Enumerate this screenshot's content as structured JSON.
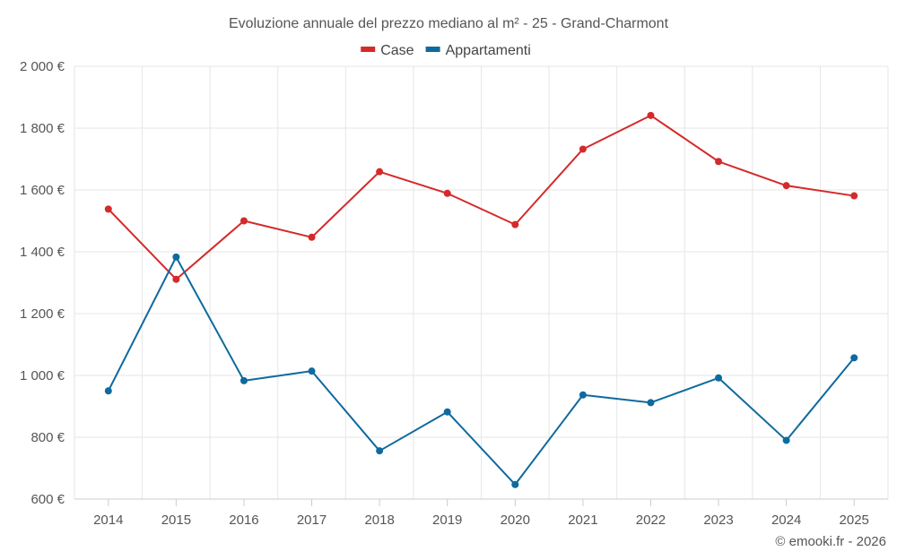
{
  "chart_data": {
    "type": "line",
    "title": "Evoluzione annuale del prezzo mediano al m² - 25 - Grand-Charmont",
    "categories": [
      "2014",
      "2015",
      "2016",
      "2017",
      "2018",
      "2019",
      "2020",
      "2021",
      "2022",
      "2023",
      "2024",
      "2025"
    ],
    "series": [
      {
        "name": "Case",
        "color": "#d42a2a",
        "values": [
          1538,
          1311,
          1500,
          1447,
          1659,
          1589,
          1488,
          1732,
          1841,
          1692,
          1614,
          1581
        ]
      },
      {
        "name": "Appartamenti",
        "color": "#0f6a9e",
        "values": [
          950,
          1383,
          983,
          1014,
          756,
          882,
          647,
          937,
          912,
          992,
          790,
          1057
        ]
      }
    ],
    "ylim": [
      600,
      2000
    ],
    "yticks": [
      600,
      800,
      1000,
      1200,
      1400,
      1600,
      1800,
      2000
    ],
    "ytick_labels": [
      "600 €",
      "800 €",
      "1 000 €",
      "1 200 €",
      "1 400 €",
      "1 600 €",
      "1 800 €",
      "2 000 €"
    ],
    "xlabel": "",
    "ylabel": "",
    "grid": true,
    "legend": "top-center"
  },
  "credit": "© emooki.fr - 2026"
}
